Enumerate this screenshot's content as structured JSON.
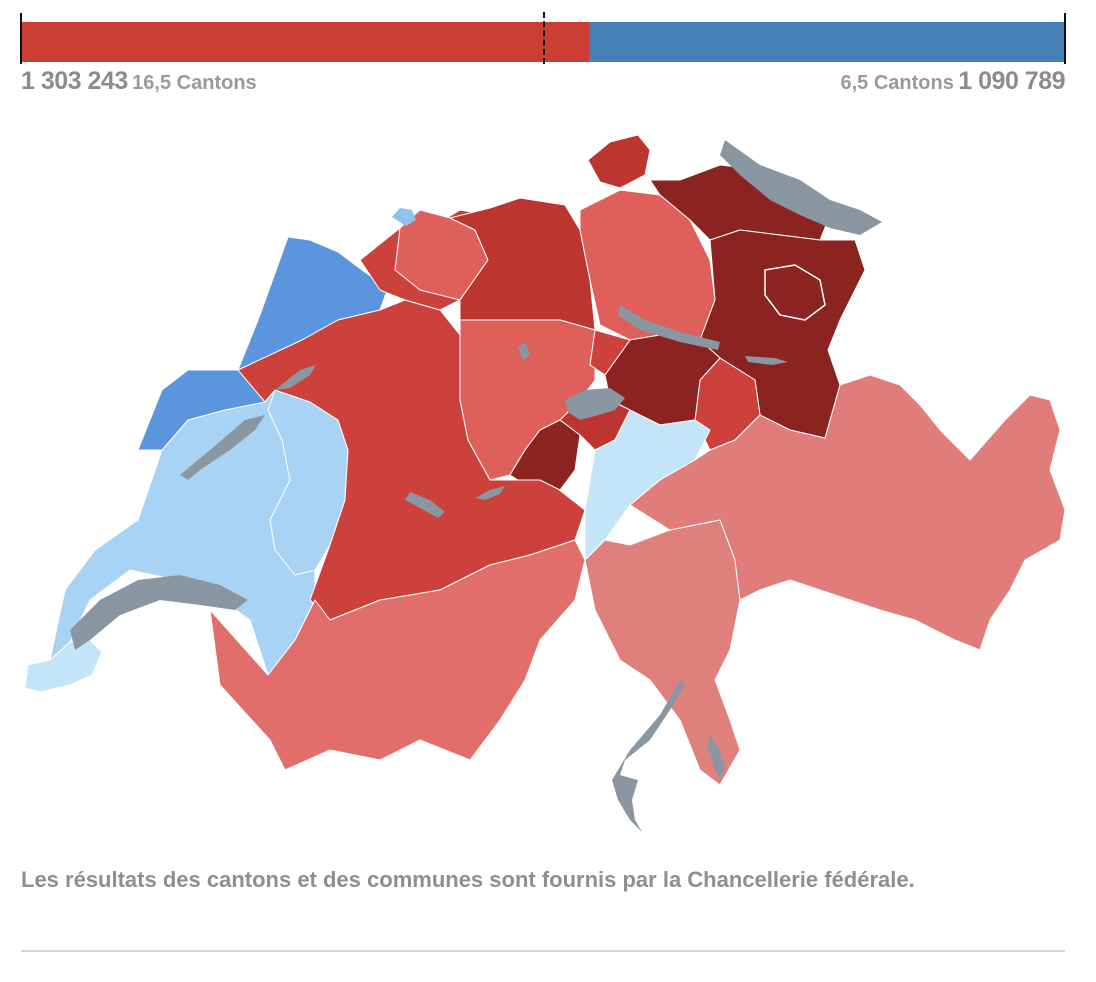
{
  "result": {
    "yes_votes": "1 303 243",
    "yes_cantons": "16,5 Cantons",
    "no_votes": "1 090 789",
    "no_cantons": "6,5 Cantons",
    "yes_share": 0.544,
    "majority_mark": 0.5,
    "colors": {
      "yes": "#cc3d33",
      "no": "#4681b5"
    }
  },
  "map": {
    "legend_colors": {
      "strong_yes": "#8b2321",
      "yes": "#bd3530",
      "medium_yes": "#cc413b",
      "light_yes": "#df5f5a",
      "pale_yes": "#e07c7a",
      "no": "#5b95dd",
      "light_no": "#a8d3f5",
      "pale_no": "#c4e4f8",
      "lake": "#8a96a1"
    }
  },
  "footnote": "Les résultats des cantons et des communes sont fournis par la Chancellerie fédérale."
}
